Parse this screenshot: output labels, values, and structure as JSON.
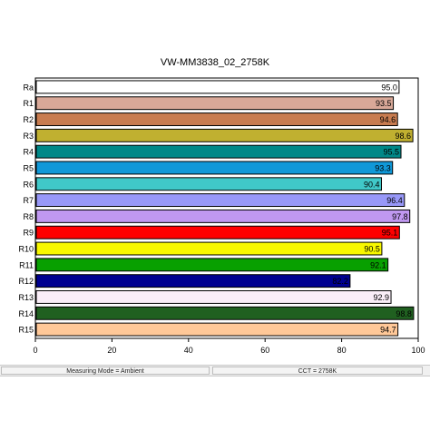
{
  "chart_data": {
    "type": "bar",
    "orientation": "horizontal",
    "title": "VW-MM3838_02_2758K",
    "categories": [
      "Ra",
      "R1",
      "R2",
      "R3",
      "R4",
      "R5",
      "R6",
      "R7",
      "R8",
      "R9",
      "R10",
      "R11",
      "R12",
      "R13",
      "R14",
      "R15"
    ],
    "values": [
      95.0,
      93.5,
      94.6,
      98.6,
      95.5,
      93.3,
      90.4,
      96.4,
      97.8,
      95.1,
      90.5,
      92.1,
      82.2,
      92.9,
      98.8,
      94.7
    ],
    "value_labels": [
      "95.0",
      "93.5",
      "94.6",
      "98.6",
      "95.5",
      "93.3",
      "90.4",
      "96.4",
      "97.8",
      "95.1",
      "90.5",
      "92.1",
      "82.2",
      "92.9",
      "98.8",
      "94.7"
    ],
    "colors": [
      "#ffffff",
      "#d8a898",
      "#c87c50",
      "#c0b030",
      "#008888",
      "#1098d8",
      "#40c8c8",
      "#9898f8",
      "#c098f0",
      "#ff0000",
      "#f8f800",
      "#08a000",
      "#000090",
      "#faeef8",
      "#206020",
      "#ffc898"
    ],
    "xlim": [
      0,
      100
    ],
    "xticks": [
      0,
      20,
      40,
      60,
      80,
      100
    ],
    "xticklabels": [
      "0",
      "20",
      "40",
      "60",
      "80",
      "100"
    ],
    "grid": false,
    "legend": "none"
  },
  "status": {
    "mode": "Measuring Mode = Ambient",
    "cct": "CCT = 2758K"
  }
}
